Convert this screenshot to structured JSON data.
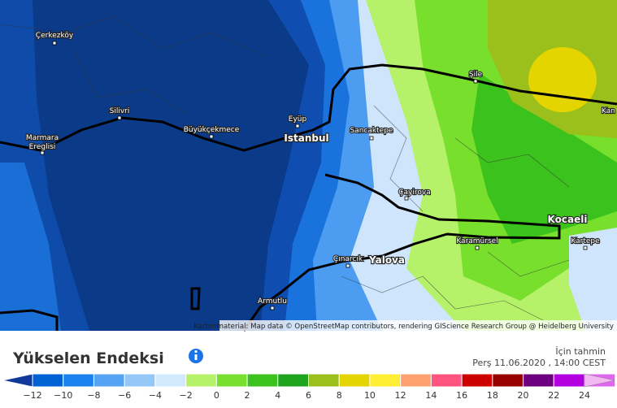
{
  "map": {
    "places": [
      "Çerkezköy",
      "Silivri",
      "Marmara",
      "Ereglisi",
      "Büyükçekmece",
      "Eyüp",
      "Istanbul",
      "Sancaktepe",
      "Şile",
      "Kan",
      "Çayirova",
      "Kocaeli",
      "Karamürsel",
      "Kartepe",
      "Çınarcık",
      "Yalova",
      "Armutlu"
    ],
    "attribution": "Kartenmaterial: Map data © OpenStreetMap contributors, rendering GIScience Research Group @ Heidelberg University"
  },
  "header": {
    "title": "Yükselen Endeksi",
    "forecast_label": "İçin tahmin",
    "forecast_time": "Perş 11.06.2020 , 14:00 CEST"
  },
  "legend": {
    "colors": [
      "#10399a",
      "#0062d2",
      "#1a82ee",
      "#55a4f3",
      "#94c8f7",
      "#d2e9fb",
      "#b5f26a",
      "#78df2c",
      "#3bc21c",
      "#1ea51d",
      "#9bbf1b",
      "#e4d500",
      "#ffee32",
      "#ffa070",
      "#ff5482",
      "#cc0000",
      "#980000",
      "#6c007e",
      "#b200e0",
      "#e066f0",
      "#f2b8f2"
    ],
    "tick_labels": [
      "−12",
      "−10",
      "−8",
      "−6",
      "−4",
      "−2",
      "0",
      "2",
      "4",
      "6",
      "8",
      "10",
      "12",
      "14",
      "16",
      "18",
      "20",
      "22",
      "24"
    ]
  }
}
